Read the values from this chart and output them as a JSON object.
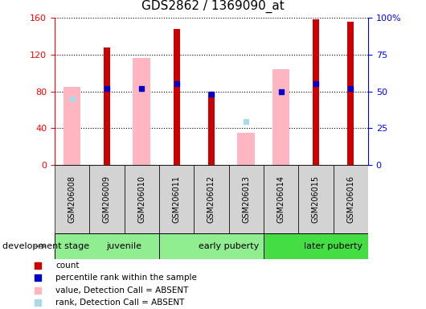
{
  "title": "GDS2862 / 1369090_at",
  "samples": [
    "GSM206008",
    "GSM206009",
    "GSM206010",
    "GSM206011",
    "GSM206012",
    "GSM206013",
    "GSM206014",
    "GSM206015",
    "GSM206016"
  ],
  "red_bars": [
    null,
    128,
    null,
    148,
    80,
    null,
    null,
    158,
    156
  ],
  "pink_bars": [
    85,
    null,
    116,
    null,
    null,
    35,
    104,
    null,
    null
  ],
  "blue_squares": [
    null,
    83,
    83,
    88,
    77,
    null,
    80,
    88,
    83
  ],
  "light_blue_squares": [
    72,
    null,
    null,
    null,
    null,
    47,
    null,
    null,
    null
  ],
  "groups": [
    {
      "label": "juvenile",
      "start": 0,
      "end": 3,
      "color": "#90ee90"
    },
    {
      "label": "early puberty",
      "start": 3,
      "end": 6,
      "color": "#90ee90"
    },
    {
      "label": "later puberty",
      "start": 6,
      "end": 9,
      "color": "#55dd55"
    }
  ],
  "ylim_left": [
    0,
    160
  ],
  "ylim_right": [
    0,
    100
  ],
  "yticks_left": [
    0,
    40,
    80,
    120,
    160
  ],
  "yticks_right": [
    0,
    25,
    50,
    75,
    100
  ],
  "ytick_labels_right": [
    "0",
    "25",
    "50",
    "75",
    "100%"
  ],
  "legend_items": [
    {
      "color": "#cc0000",
      "label": "count"
    },
    {
      "color": "#0000cc",
      "label": "percentile rank within the sample"
    },
    {
      "color": "#ffb6c1",
      "label": "value, Detection Call = ABSENT"
    },
    {
      "color": "#add8e6",
      "label": "rank, Detection Call = ABSENT"
    }
  ],
  "development_stage_label": "development stage"
}
